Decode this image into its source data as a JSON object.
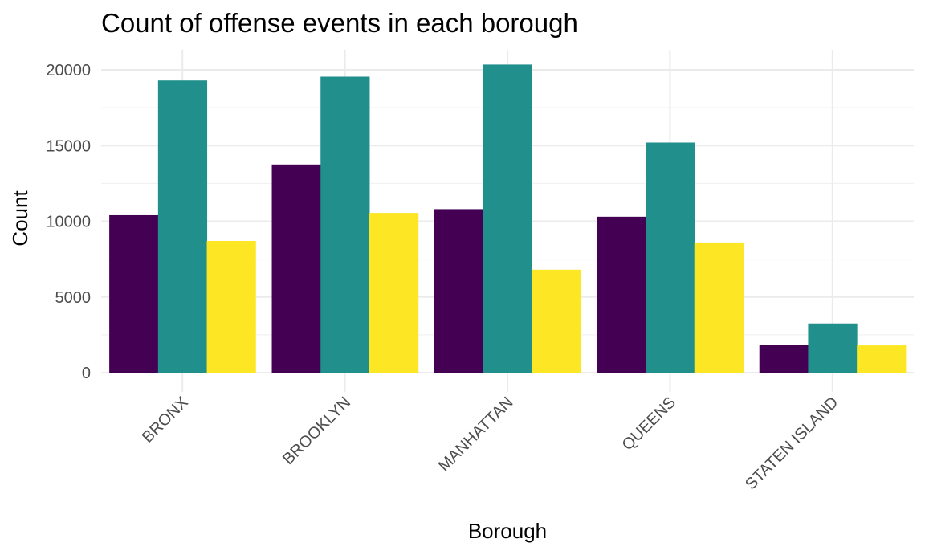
{
  "chart_data": {
    "type": "bar",
    "title": "Count of offense events in each borough",
    "xlabel": "Borough",
    "ylabel": "Count",
    "categories": [
      "BRONX",
      "BROOKLYN",
      "MANHATTAN",
      "QUEENS",
      "STATEN ISLAND"
    ],
    "series": [
      {
        "color": "#440154",
        "values": [
          10400,
          13750,
          10800,
          10300,
          1850
        ]
      },
      {
        "color": "#21908C",
        "values": [
          19300,
          19550,
          20350,
          15200,
          3250
        ]
      },
      {
        "color": "#FDE725",
        "values": [
          8700,
          10550,
          6800,
          8600,
          1800
        ]
      }
    ],
    "yticks": [
      0,
      5000,
      10000,
      15000,
      20000
    ],
    "ylim": [
      0,
      21000
    ],
    "grid": true,
    "legend": "none"
  }
}
